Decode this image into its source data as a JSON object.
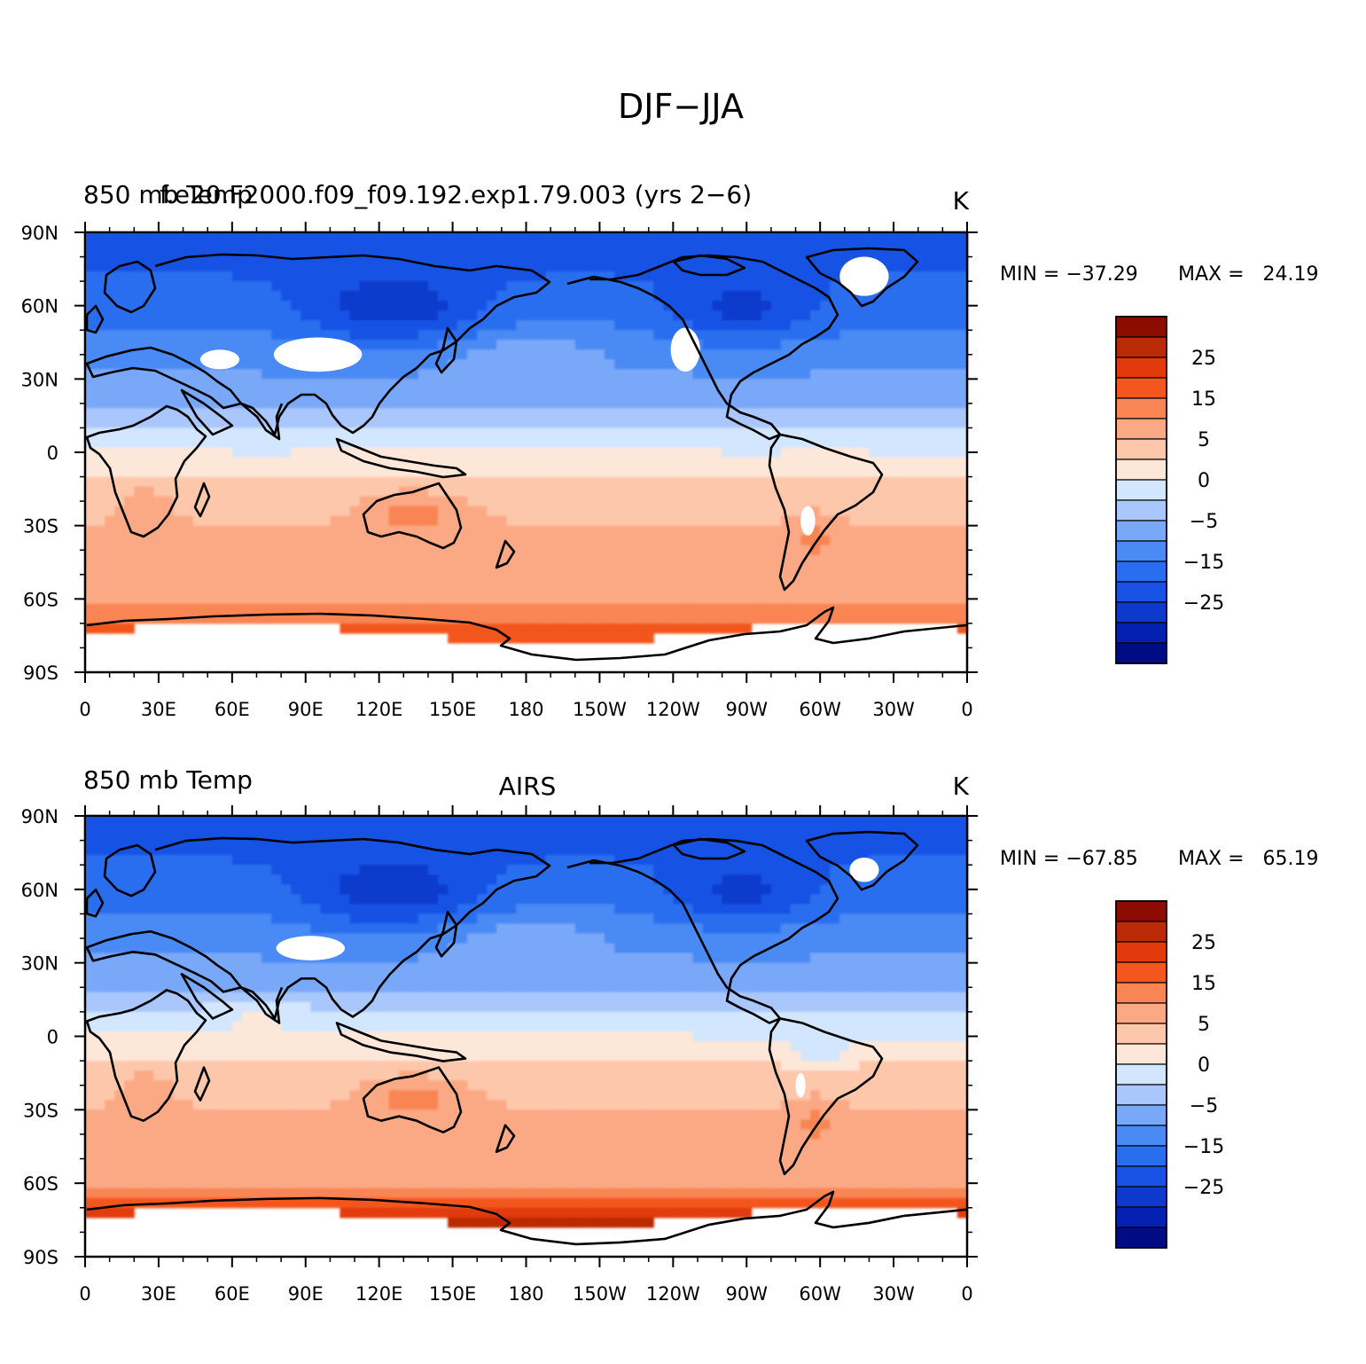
{
  "title": "DJF−JJA",
  "palette": {
    "levels": [
      -35,
      -30,
      -25,
      -20,
      -15,
      -10,
      -5,
      -2,
      0,
      2,
      5,
      10,
      15,
      20,
      25,
      30,
      35
    ],
    "colors": [
      "#000c84",
      "#0420b0",
      "#0d3acc",
      "#1752e4",
      "#2a6ef0",
      "#4a8af4",
      "#7aa8f8",
      "#a9c7fc",
      "#d2e6fe",
      "#fde7d8",
      "#fdc7ab",
      "#fba984",
      "#f88553",
      "#f3561e",
      "#e23a0c",
      "#bb2a06",
      "#8c0c00"
    ],
    "missing": "#ffffff"
  },
  "chart_data": [
    {
      "type": "heatmap",
      "title_left": "850 mb Temp",
      "title_overlay": "f.e20.F2000.f09_f09.192.exp1.79.003 (yrs 2−6)",
      "title_center": "",
      "units": "K",
      "min_label": "MIN = −37.29",
      "max_label": "MAX =   24.19",
      "colorbar_labels": [
        "25",
        "15",
        "5",
        "0",
        "−5",
        "−15",
        "−25"
      ],
      "x_ticks": [
        "0",
        "30E",
        "60E",
        "90E",
        "120E",
        "150E",
        "180",
        "150W",
        "120W",
        "90W",
        "60W",
        "30W",
        "0"
      ],
      "y_ticks": [
        "90N",
        "60N",
        "30N",
        "0",
        "30S",
        "60S",
        "90S"
      ],
      "xlim": [
        0,
        360
      ],
      "ylim": [
        -90,
        90
      ]
    },
    {
      "type": "heatmap",
      "title_left": "850 mb Temp",
      "title_overlay": "",
      "title_center": "AIRS",
      "units": "K",
      "min_label": "MIN = −67.85",
      "max_label": "MAX =   65.19",
      "colorbar_labels": [
        "25",
        "15",
        "5",
        "0",
        "−5",
        "−15",
        "−25"
      ],
      "x_ticks": [
        "0",
        "30E",
        "60E",
        "90E",
        "120E",
        "150E",
        "180",
        "150W",
        "120W",
        "90W",
        "60W",
        "30W",
        "0"
      ],
      "y_ticks": [
        "90N",
        "60N",
        "30N",
        "0",
        "30S",
        "60S",
        "90S"
      ],
      "xlim": [
        0,
        360
      ],
      "ylim": [
        -90,
        90
      ]
    }
  ]
}
